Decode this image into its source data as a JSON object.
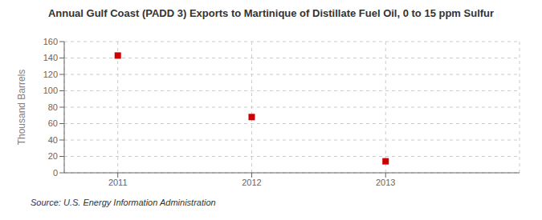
{
  "chart_data": {
    "type": "scatter",
    "title": "Annual Gulf Coast (PADD 3) Exports to Martinique of Distillate Fuel Oil, 0 to 15 ppm Sulfur",
    "ylabel": "Thousand Barrels",
    "source": "Source: U.S. Energy Information Administration",
    "x": [
      2011,
      2012,
      2013
    ],
    "values": [
      143,
      68,
      14
    ],
    "xlim": [
      2010.6,
      2014.0
    ],
    "xticks": [
      2011,
      2012,
      2013
    ],
    "ylim": [
      0,
      160
    ],
    "yticks": [
      0,
      20,
      40,
      60,
      80,
      100,
      120,
      140,
      160
    ],
    "color": "#cc0000",
    "marker": "square",
    "grid": true
  }
}
